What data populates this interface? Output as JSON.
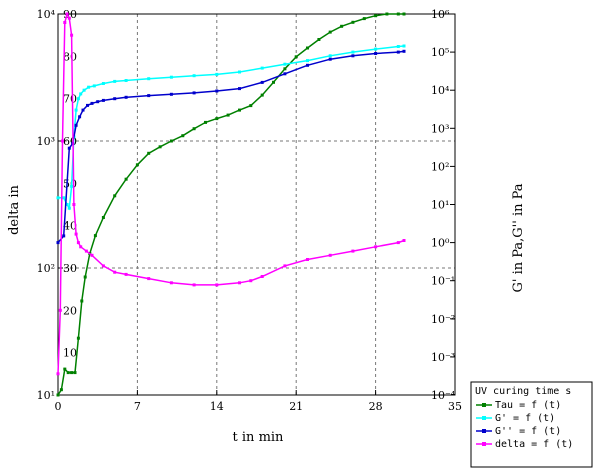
{
  "chart_data": {
    "type": "line",
    "xlabel": "t in min",
    "ylabel_left": "delta in",
    "ylabel_right": "G'  in Pa,G''  in Pa",
    "x_ticks": [
      "0",
      "7",
      "14",
      "21",
      "28",
      "35"
    ],
    "x_tick_values": [
      0,
      7,
      14,
      21,
      28,
      35
    ],
    "xlim": [
      0,
      35
    ],
    "left_outer_ticks": [
      "10⁴",
      "10³",
      "10²",
      "10¹"
    ],
    "left_outer_tick_values": [
      4,
      3,
      2,
      1
    ],
    "left_outer_ylim_log10": [
      1,
      4
    ],
    "left_inner_ticks": [
      "90",
      "80",
      "70",
      "60",
      "50",
      "40",
      "30",
      "20",
      "10"
    ],
    "left_inner_tick_values": [
      90,
      80,
      70,
      60,
      50,
      40,
      30,
      20,
      10
    ],
    "left_inner_ylim": [
      0,
      90
    ],
    "right_ticks": [
      "10⁶",
      "10⁵",
      "10⁴",
      "10³",
      "10²",
      "10¹",
      "10⁰",
      "10⁻¹",
      "10⁻²",
      "10⁻³",
      "10⁻⁴"
    ],
    "right_tick_values": [
      6,
      5,
      4,
      3,
      2,
      1,
      0,
      -1,
      -2,
      -3,
      -4
    ],
    "right_ylim_log10": [
      -4,
      6
    ],
    "grid": true,
    "legend_position": "bottom-right",
    "legend_title": "UV curing time s",
    "series": [
      {
        "name": "Tau = f (t)",
        "color": "#008000",
        "axis": "left_outer",
        "x": [
          0,
          0.3,
          0.6,
          0.9,
          1.2,
          1.5,
          1.8,
          2.1,
          2.4,
          2.8,
          3.3,
          4,
          5,
          6,
          7,
          8,
          9,
          10,
          11,
          12,
          13,
          14,
          15,
          16,
          17,
          18,
          19,
          20,
          21,
          22,
          23,
          24,
          25,
          26,
          27,
          28,
          29,
          30,
          30.5
        ],
        "y": [
          10,
          11,
          16,
          15,
          15,
          15,
          28,
          55,
          85,
          130,
          180,
          250,
          370,
          500,
          650,
          800,
          900,
          1000,
          1100,
          1250,
          1400,
          1500,
          1600,
          1750,
          1900,
          2300,
          2900,
          3700,
          4600,
          5400,
          6300,
          7200,
          8000,
          8600,
          9200,
          9700,
          10300,
          10800,
          11000
        ]
      },
      {
        "name": "G' = f (t)",
        "color": "#00ffff",
        "axis": "right",
        "x": [
          0,
          0.5,
          0.8,
          1.0,
          1.2,
          1.4,
          1.6,
          1.8,
          2.0,
          2.3,
          2.7,
          3.2,
          4,
          5,
          6,
          8,
          10,
          12,
          14,
          16,
          18,
          20,
          22,
          24,
          26,
          28,
          30,
          30.5
        ],
        "y": [
          15,
          15,
          10,
          8,
          30,
          600,
          3000,
          6000,
          8000,
          10000,
          12000,
          13000,
          15000,
          17000,
          18000,
          20000,
          22000,
          24000,
          26000,
          30000,
          38000,
          48000,
          60000,
          80000,
          100000,
          120000,
          140000,
          145000
        ]
      },
      {
        "name": "G'' = f (t)",
        "color": "#0000cc",
        "axis": "right",
        "x": [
          0,
          0.5,
          1.0,
          1.3,
          1.6,
          1.9,
          2.2,
          2.6,
          3.0,
          3.5,
          4,
          5,
          6,
          8,
          10,
          12,
          14,
          16,
          18,
          20,
          22,
          24,
          26,
          28,
          30,
          30.5
        ],
        "y": [
          1,
          1.5,
          300,
          400,
          1200,
          2000,
          3000,
          4000,
          4500,
          5000,
          5400,
          6000,
          6500,
          7200,
          7800,
          8500,
          9500,
          11000,
          16000,
          27000,
          45000,
          65000,
          80000,
          92000,
          100000,
          105000
        ]
      },
      {
        "name": "delta = f (t)",
        "color": "#ff00ff",
        "axis": "left_inner",
        "x": [
          0,
          0.2,
          0.4,
          0.6,
          0.8,
          1.0,
          1.2,
          1.4,
          1.6,
          1.8,
          2.0,
          2.5,
          3,
          4,
          5,
          6,
          8,
          10,
          12,
          14,
          16,
          17,
          18,
          20,
          22,
          24,
          26,
          28,
          30,
          30.5
        ],
        "y": [
          5,
          20,
          60,
          88,
          90,
          89,
          85,
          45,
          38,
          36,
          35,
          34,
          33,
          30.5,
          29,
          28.5,
          27.5,
          26.5,
          26,
          26,
          26.5,
          27,
          28,
          30.5,
          32,
          33,
          34,
          35,
          36,
          36.5
        ]
      }
    ]
  }
}
